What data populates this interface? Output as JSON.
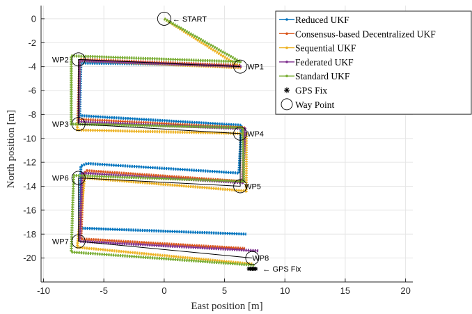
{
  "chart_data": {
    "type": "line",
    "xlabel": "East position [m]",
    "ylabel": "North position [m]",
    "xlim": [
      -10.2,
      20.6
    ],
    "ylim": [
      -22.0,
      1.1
    ],
    "xticks": [
      -10,
      -5,
      0,
      5,
      10,
      15,
      20
    ],
    "yticks": [
      0,
      -2,
      -4,
      -6,
      -8,
      -10,
      -12,
      -14,
      -16,
      -18,
      -20
    ],
    "grid": true,
    "legend_position": "top-right",
    "series": [
      {
        "name": "Reduced UKF",
        "color": "#0072BD",
        "x": [
          6.3,
          -6.9,
          -7.0,
          6.4,
          6.2,
          -6.4,
          -6.9,
          -7.0,
          6.8
        ],
        "y": [
          -3.9,
          -3.7,
          -8.1,
          -8.9,
          -12.9,
          -12.1,
          -12.3,
          -17.5,
          -18.0
        ]
      },
      {
        "name": "Consensus-based Decentralized UKF",
        "color": "#D95319",
        "x": [
          6.3,
          -7.0,
          -7.1,
          6.6,
          6.5,
          -6.4,
          -6.7,
          -6.9,
          6.7
        ],
        "y": [
          -3.9,
          -3.4,
          -8.4,
          -9.1,
          -13.6,
          -12.7,
          -13.0,
          -18.4,
          -19.2
        ]
      },
      {
        "name": "Sequential UKF",
        "color": "#EDB120",
        "x": [
          0.0,
          6.4,
          -7.0,
          -7.2,
          6.8,
          6.8,
          -6.6,
          -7.2,
          7.3
        ],
        "y": [
          0.0,
          -4.1,
          -3.5,
          -9.3,
          -9.6,
          -14.4,
          -13.3,
          -19.1,
          -20.5
        ]
      },
      {
        "name": "Federated UKF",
        "color": "#7E2F8E",
        "x": [
          6.4,
          -7.0,
          -7.1,
          6.7,
          6.5,
          -6.8,
          -7.0,
          7.8
        ],
        "y": [
          -4.0,
          -3.5,
          -8.6,
          -9.2,
          -13.7,
          -12.9,
          -18.6,
          -19.4
        ]
      },
      {
        "name": "Standard UKF",
        "color": "#77AC30",
        "x": [
          0.0,
          6.3,
          -7.7,
          -7.7,
          6.5,
          6.6,
          -7.5,
          -7.7,
          7.5
        ],
        "y": [
          0.0,
          -3.6,
          -3.1,
          -8.8,
          -9.1,
          -13.6,
          -13.1,
          -19.5,
          -20.6
        ]
      }
    ],
    "reference_path": {
      "x": [
        6.3,
        -7.1,
        -7.1,
        6.3,
        6.3,
        -7.1,
        -7.1,
        7.3
      ],
      "y": [
        -4.0,
        -3.4,
        -8.8,
        -9.6,
        -14.0,
        -13.3,
        -18.6,
        -20.0
      ]
    },
    "waypoints": [
      {
        "label": "START",
        "x": 0.0,
        "y": 0.0,
        "annotation": "← START"
      },
      {
        "label": "WP1",
        "x": 6.3,
        "y": -4.0
      },
      {
        "label": "WP2",
        "x": -7.1,
        "y": -3.4
      },
      {
        "label": "WP3",
        "x": -7.1,
        "y": -8.8
      },
      {
        "label": "WP4",
        "x": 6.3,
        "y": -9.6
      },
      {
        "label": "WP5",
        "x": 6.3,
        "y": -14.0
      },
      {
        "label": "WP6",
        "x": -7.1,
        "y": -13.3
      },
      {
        "label": "WP7",
        "x": -7.1,
        "y": -18.6
      },
      {
        "label": "WP8",
        "x": 7.3,
        "y": -20.0
      }
    ],
    "gps_fix": {
      "x": 7.3,
      "y": -20.9,
      "annotation": "← GPS Fix"
    },
    "legend": [
      {
        "label": "Reduced UKF",
        "color": "#0072BD",
        "marker": "line"
      },
      {
        "label": "Consensus-based Decentralized UKF",
        "color": "#D95319",
        "marker": "line"
      },
      {
        "label": "Sequential UKF",
        "color": "#EDB120",
        "marker": "line"
      },
      {
        "label": "Federated UKF",
        "color": "#7E2F8E",
        "marker": "line"
      },
      {
        "label": "Standard UKF",
        "color": "#77AC30",
        "marker": "line"
      },
      {
        "label": "GPS Fix",
        "color": "#000000",
        "marker": "star"
      },
      {
        "label": "Way Point",
        "color": "#000000",
        "marker": "circle"
      }
    ]
  }
}
